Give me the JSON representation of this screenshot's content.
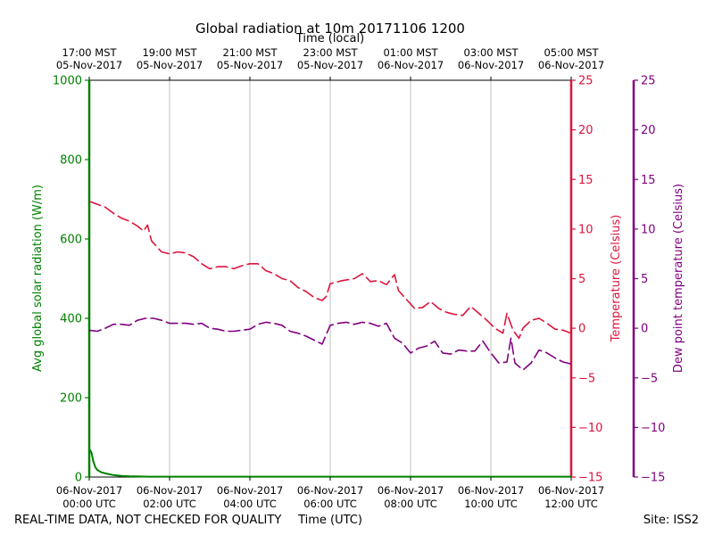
{
  "chart_data": {
    "type": "line",
    "title": "Global radiation at 10m 20171106 1200",
    "top_axis_label": "Time (local)",
    "xlabel": "Time (UTC)",
    "footer_left": "REAL-TIME DATA, NOT CHECKED FOR QUALITY",
    "footer_right": "Site: ISS2",
    "x_range_hours_utc": [
      0,
      12
    ],
    "bottom_ticks": [
      {
        "hour": 0,
        "line1": "06-Nov-2017",
        "line2": "00:00 UTC"
      },
      {
        "hour": 2,
        "line1": "06-Nov-2017",
        "line2": "02:00 UTC"
      },
      {
        "hour": 4,
        "line1": "06-Nov-2017",
        "line2": "04:00 UTC"
      },
      {
        "hour": 6,
        "line1": "06-Nov-2017",
        "line2": "06:00 UTC"
      },
      {
        "hour": 8,
        "line1": "06-Nov-2017",
        "line2": "08:00 UTC"
      },
      {
        "hour": 10,
        "line1": "06-Nov-2017",
        "line2": "10:00 UTC"
      },
      {
        "hour": 12,
        "line1": "06-Nov-2017",
        "line2": "12:00 UTC"
      }
    ],
    "top_ticks": [
      {
        "hour": 0,
        "line1": "17:00 MST",
        "line2": "05-Nov-2017"
      },
      {
        "hour": 2,
        "line1": "19:00 MST",
        "line2": "05-Nov-2017"
      },
      {
        "hour": 4,
        "line1": "21:00 MST",
        "line2": "05-Nov-2017"
      },
      {
        "hour": 6,
        "line1": "23:00 MST",
        "line2": "05-Nov-2017"
      },
      {
        "hour": 8,
        "line1": "01:00 MST",
        "line2": "06-Nov-2017"
      },
      {
        "hour": 10,
        "line1": "03:00 MST",
        "line2": "06-Nov-2017"
      },
      {
        "hour": 12,
        "line1": "05:00 MST",
        "line2": "06-Nov-2017"
      }
    ],
    "axes": {
      "radiation": {
        "label": "Avg global solar radiation (W/m)",
        "ylim": [
          0,
          1000
        ],
        "ticks": [
          "0",
          "200",
          "400",
          "600",
          "800",
          "1000"
        ],
        "color": "#008000"
      },
      "temperature": {
        "label": "Temperature (Celsius)",
        "ylim": [
          -15,
          25
        ],
        "ticks": [
          "−15",
          "−10",
          "−5",
          "0",
          "5",
          "10",
          "15",
          "20",
          "25"
        ],
        "color": "#dc143c"
      },
      "dewpoint": {
        "label": "Dew point temperature (Celsius)",
        "ylim": [
          -15,
          25
        ],
        "ticks": [
          "−15",
          "−10",
          "−5",
          "0",
          "5",
          "10",
          "15",
          "20",
          "25"
        ],
        "color": "#800080"
      }
    },
    "series": [
      {
        "name": "Avg global solar radiation",
        "axis": "radiation",
        "color": "#008000",
        "style": "solid",
        "x": [
          0,
          0.03,
          0.06,
          0.1,
          0.15,
          0.2,
          0.3,
          0.45,
          0.6,
          0.8,
          1.0,
          1.5,
          2,
          4,
          6,
          8,
          10,
          12
        ],
        "y": [
          65,
          67,
          60,
          40,
          25,
          18,
          12,
          8,
          5,
          3,
          2,
          1,
          1,
          1,
          1,
          1,
          1,
          1
        ]
      },
      {
        "name": "Temperature",
        "axis": "temperature",
        "color": "#dc143c",
        "style": "dashed",
        "x": [
          0,
          0.2,
          0.4,
          0.6,
          0.8,
          1.0,
          1.2,
          1.35,
          1.45,
          1.55,
          1.8,
          2.0,
          2.2,
          2.4,
          2.6,
          2.8,
          3.0,
          3.2,
          3.4,
          3.6,
          3.8,
          4.0,
          4.2,
          4.4,
          4.6,
          4.8,
          5.0,
          5.2,
          5.4,
          5.6,
          5.8,
          5.9,
          6.0,
          6.3,
          6.6,
          6.8,
          7.0,
          7.2,
          7.4,
          7.6,
          7.7,
          7.9,
          8.1,
          8.3,
          8.5,
          8.7,
          8.9,
          9.1,
          9.3,
          9.5,
          9.7,
          9.9,
          10.1,
          10.3,
          10.4,
          10.55,
          10.7,
          10.8,
          11.0,
          11.2,
          11.4,
          11.6,
          11.8,
          12.0
        ],
        "y": [
          12.8,
          12.5,
          12.2,
          11.6,
          11.1,
          10.8,
          10.3,
          9.8,
          10.4,
          8.8,
          7.7,
          7.5,
          7.7,
          7.6,
          7.2,
          6.5,
          6.0,
          6.2,
          6.2,
          6.0,
          6.3,
          6.5,
          6.5,
          5.8,
          5.5,
          5.0,
          4.8,
          4.1,
          3.7,
          3.1,
          2.8,
          3.2,
          4.5,
          4.8,
          5.0,
          5.5,
          4.7,
          4.8,
          4.4,
          5.4,
          3.8,
          2.9,
          2.0,
          2.1,
          2.7,
          2.0,
          1.6,
          1.4,
          1.3,
          2.2,
          1.5,
          0.8,
          0.0,
          -0.5,
          1.5,
          -0.2,
          -1.0,
          0.0,
          0.8,
          1.0,
          0.5,
          -0.1,
          -0.2,
          -0.5
        ]
      },
      {
        "name": "Dew point temperature",
        "axis": "dewpoint",
        "color": "#800080",
        "style": "dashed",
        "x": [
          0,
          0.2,
          0.4,
          0.6,
          0.8,
          1.0,
          1.2,
          1.4,
          1.6,
          1.8,
          2.0,
          2.2,
          2.4,
          2.6,
          2.8,
          3.0,
          3.2,
          3.4,
          3.6,
          3.8,
          4.0,
          4.2,
          4.4,
          4.6,
          4.8,
          5.0,
          5.2,
          5.4,
          5.6,
          5.8,
          6.0,
          6.2,
          6.4,
          6.6,
          6.8,
          7.0,
          7.2,
          7.4,
          7.6,
          7.8,
          8.0,
          8.2,
          8.4,
          8.6,
          8.8,
          9.0,
          9.2,
          9.4,
          9.6,
          9.8,
          10.0,
          10.2,
          10.4,
          10.5,
          10.6,
          10.8,
          11.0,
          11.2,
          11.4,
          11.6,
          11.8,
          12.0
        ],
        "y": [
          -0.2,
          -0.3,
          0.0,
          0.4,
          0.4,
          0.3,
          0.8,
          1.0,
          1.0,
          0.8,
          0.5,
          0.5,
          0.5,
          0.4,
          0.5,
          0.0,
          -0.1,
          -0.3,
          -0.3,
          -0.2,
          -0.1,
          0.4,
          0.6,
          0.5,
          0.3,
          -0.3,
          -0.5,
          -0.8,
          -1.2,
          -1.6,
          0.3,
          0.5,
          0.6,
          0.4,
          0.6,
          0.5,
          0.2,
          0.5,
          -1.0,
          -1.5,
          -2.5,
          -2.0,
          -1.8,
          -1.3,
          -2.5,
          -2.6,
          -2.2,
          -2.3,
          -2.3,
          -1.3,
          -2.5,
          -3.5,
          -3.4,
          -1.0,
          -3.5,
          -4.2,
          -3.5,
          -2.2,
          -2.5,
          -3.0,
          -3.4,
          -3.6
        ]
      }
    ]
  }
}
